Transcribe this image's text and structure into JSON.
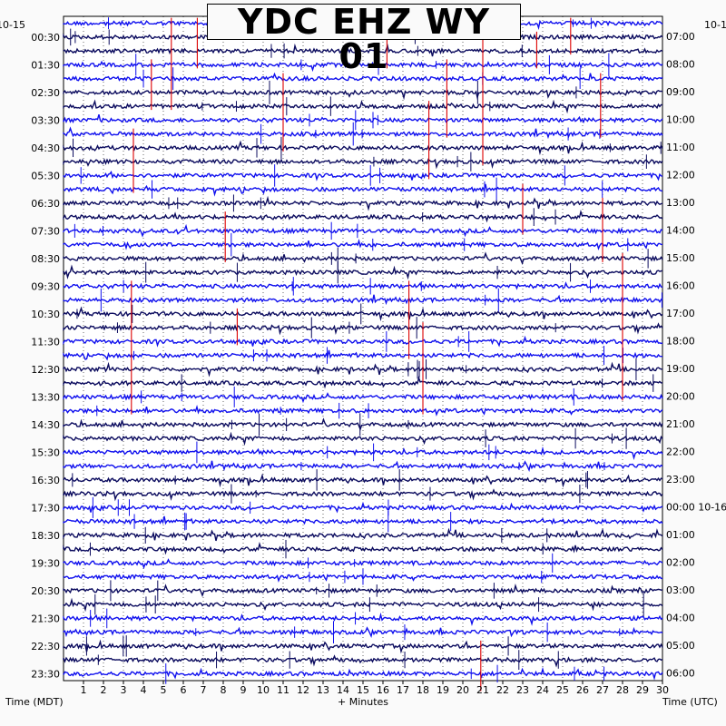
{
  "chart_data": {
    "type": "line",
    "title": "YDC EHZ WY 01",
    "left_date_label": "10-15",
    "right_date_label": "10-1",
    "left_times": [
      "00:30",
      "01:30",
      "02:30",
      "03:30",
      "04:30",
      "05:30",
      "06:30",
      "07:30",
      "08:30",
      "09:30",
      "10:30",
      "11:30",
      "12:30",
      "13:30",
      "14:30",
      "15:30",
      "16:30",
      "17:30",
      "18:30",
      "19:30",
      "20:30",
      "21:30",
      "22:30",
      "23:30"
    ],
    "right_times": [
      "07:00",
      "08:00",
      "09:00",
      "10:00",
      "11:00",
      "12:00",
      "13:00",
      "14:00",
      "15:00",
      "16:00",
      "17:00",
      "18:00",
      "19:00",
      "20:00",
      "21:00",
      "22:00",
      "23:00",
      "00:00 10-16",
      "01:00",
      "02:00",
      "03:00",
      "04:00",
      "05:00",
      "06:00"
    ],
    "x_ticks": [
      "1",
      "2",
      "3",
      "4",
      "5",
      "6",
      "7",
      "8",
      "9",
      "10",
      "11",
      "12",
      "13",
      "14",
      "15",
      "16",
      "17",
      "18",
      "19",
      "20",
      "21",
      "22",
      "23",
      "24",
      "25",
      "26",
      "27",
      "28",
      "29",
      "30"
    ],
    "xlim": [
      0,
      30
    ],
    "traces_per_hour": 2,
    "trace_count": 48,
    "xlabel": "+ Minutes",
    "left_axis_label": "Time (MDT)",
    "right_axis_label": "Time (UTC)",
    "colors": {
      "dark_trace": "#0b0b5e",
      "blue_trace": "#1010ee",
      "event_marker": "#dd0000",
      "grid": "#000000"
    }
  }
}
